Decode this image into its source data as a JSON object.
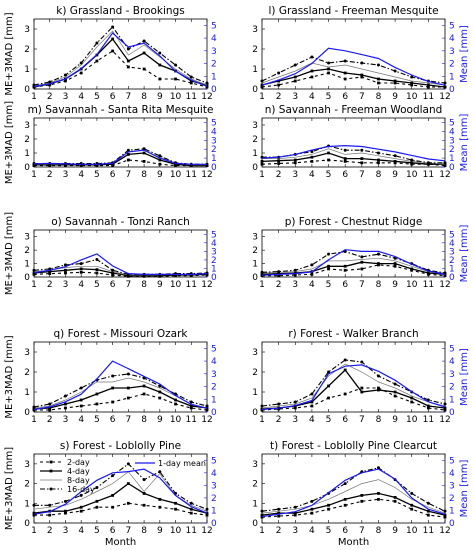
{
  "figure": {
    "xlabel": "Month",
    "ylabel_left": "ME+3MAD [mm]",
    "ylabel_right": "Mean [mm]",
    "mean_color": "#1a1aee",
    "line_color": "#000000"
  },
  "legend": {
    "entries": [
      "2-day",
      "4-day",
      "8-day",
      "16-day"
    ],
    "mean_entry": "1-day mean"
  },
  "chart_data": [
    {
      "type": "line",
      "title": "k) Grassland - Brookings",
      "x": [
        1,
        2,
        3,
        4,
        5,
        6,
        7,
        8,
        9,
        10,
        11,
        12
      ],
      "ylim": [
        0,
        3.5
      ],
      "ylim_right": [
        0,
        5.5
      ],
      "series": [
        {
          "name": "2-day",
          "values": [
            0.1,
            0.2,
            0.4,
            0.8,
            1.4,
            1.9,
            1.1,
            1.0,
            0.5,
            0.5,
            0.3,
            0.1
          ]
        },
        {
          "name": "4-day",
          "values": [
            0.1,
            0.25,
            0.5,
            1.0,
            1.7,
            2.5,
            1.4,
            1.8,
            1.2,
            0.9,
            0.4,
            0.2
          ]
        },
        {
          "name": "8-day",
          "values": [
            0.15,
            0.3,
            0.6,
            1.2,
            2.1,
            2.9,
            1.7,
            2.2,
            1.6,
            1.0,
            0.5,
            0.2
          ]
        },
        {
          "name": "16-day",
          "values": [
            0.2,
            0.35,
            0.7,
            1.3,
            2.3,
            3.1,
            2.0,
            2.4,
            1.8,
            1.2,
            0.6,
            0.3
          ]
        },
        {
          "name": "1-day mean",
          "axis": "right",
          "values": [
            0.2,
            0.4,
            0.8,
            1.6,
            2.7,
            4.4,
            3.3,
            3.6,
            2.6,
            1.4,
            0.7,
            0.2
          ]
        }
      ]
    },
    {
      "type": "line",
      "title": "l) Grassland - Freeman Mesquite",
      "x": [
        1,
        2,
        3,
        4,
        5,
        6,
        7,
        8,
        9,
        10,
        11,
        12
      ],
      "ylim": [
        0,
        3.5
      ],
      "ylim_right": [
        0,
        5.5
      ],
      "series": [
        {
          "name": "2-day",
          "values": [
            0.1,
            0.2,
            0.4,
            0.6,
            0.8,
            0.5,
            0.6,
            0.3,
            0.3,
            0.2,
            0.1,
            0.1
          ]
        },
        {
          "name": "4-day",
          "values": [
            0.2,
            0.4,
            0.6,
            0.9,
            1.0,
            0.8,
            0.7,
            0.5,
            0.4,
            0.3,
            0.2,
            0.1
          ]
        },
        {
          "name": "8-day",
          "values": [
            0.3,
            0.6,
            0.9,
            1.3,
            1.1,
            1.2,
            1.0,
            0.8,
            0.6,
            0.4,
            0.3,
            0.2
          ]
        },
        {
          "name": "16-day",
          "values": [
            0.4,
            0.8,
            1.2,
            1.6,
            1.3,
            1.4,
            1.3,
            1.2,
            0.9,
            0.6,
            0.4,
            0.3
          ]
        },
        {
          "name": "1-day mean",
          "axis": "right",
          "values": [
            0.3,
            0.7,
            1.2,
            2.0,
            3.2,
            3.0,
            2.7,
            2.4,
            1.7,
            1.1,
            0.6,
            0.3
          ]
        }
      ]
    },
    {
      "type": "line",
      "title": "m) Savannah - Santa Rita Mesquite",
      "x": [
        1,
        2,
        3,
        4,
        5,
        6,
        7,
        8,
        9,
        10,
        11,
        12
      ],
      "ylim": [
        0,
        3.5
      ],
      "ylim_right": [
        0,
        5.5
      ],
      "series": [
        {
          "name": "2-day",
          "values": [
            0.1,
            0.1,
            0.1,
            0.1,
            0.1,
            0.1,
            0.5,
            0.4,
            0.2,
            0.1,
            0.1,
            0.1
          ]
        },
        {
          "name": "4-day",
          "values": [
            0.15,
            0.15,
            0.15,
            0.15,
            0.15,
            0.2,
            0.9,
            1.0,
            0.5,
            0.2,
            0.1,
            0.1
          ]
        },
        {
          "name": "8-day",
          "values": [
            0.2,
            0.2,
            0.2,
            0.2,
            0.2,
            0.3,
            1.1,
            1.2,
            0.7,
            0.3,
            0.15,
            0.15
          ]
        },
        {
          "name": "16-day",
          "values": [
            0.25,
            0.25,
            0.25,
            0.25,
            0.25,
            0.3,
            1.2,
            1.3,
            0.8,
            0.3,
            0.2,
            0.2
          ]
        },
        {
          "name": "1-day mean",
          "axis": "right",
          "values": [
            0.35,
            0.4,
            0.35,
            0.3,
            0.3,
            0.4,
            1.7,
            1.9,
            1.0,
            0.4,
            0.3,
            0.3
          ]
        }
      ]
    },
    {
      "type": "line",
      "title": "n) Savannah - Freeman Woodland",
      "x": [
        1,
        2,
        3,
        4,
        5,
        6,
        7,
        8,
        9,
        10,
        11,
        12
      ],
      "ylim": [
        0,
        3.5
      ],
      "ylim_right": [
        0,
        5.5
      ],
      "series": [
        {
          "name": "2-day",
          "values": [
            0.2,
            0.25,
            0.3,
            0.4,
            0.5,
            0.4,
            0.3,
            0.3,
            0.3,
            0.2,
            0.2,
            0.1
          ]
        },
        {
          "name": "4-day",
          "values": [
            0.4,
            0.45,
            0.5,
            0.7,
            1.0,
            0.6,
            0.6,
            0.5,
            0.4,
            0.3,
            0.2,
            0.2
          ]
        },
        {
          "name": "8-day",
          "values": [
            0.6,
            0.6,
            0.7,
            0.9,
            1.3,
            0.9,
            1.0,
            0.8,
            0.6,
            0.4,
            0.3,
            0.2
          ]
        },
        {
          "name": "16-day",
          "values": [
            0.7,
            0.7,
            0.9,
            1.1,
            1.5,
            1.2,
            1.2,
            1.0,
            0.8,
            0.5,
            0.3,
            0.3
          ]
        },
        {
          "name": "1-day mean",
          "axis": "right",
          "values": [
            1.0,
            1.1,
            1.4,
            1.9,
            2.3,
            2.4,
            2.3,
            2.0,
            1.7,
            1.3,
            0.9,
            0.7
          ]
        }
      ]
    },
    {
      "type": "line",
      "title": "o) Savannah - Tonzi Ranch",
      "x": [
        1,
        2,
        3,
        4,
        5,
        6,
        7,
        8,
        9,
        10,
        11,
        12
      ],
      "ylim": [
        0,
        3.5
      ],
      "ylim_right": [
        0,
        5.5
      ],
      "series": [
        {
          "name": "2-day",
          "values": [
            0.2,
            0.25,
            0.3,
            0.35,
            0.3,
            0.15,
            0.05,
            0.05,
            0.05,
            0.1,
            0.1,
            0.15
          ]
        },
        {
          "name": "4-day",
          "values": [
            0.3,
            0.4,
            0.5,
            0.6,
            0.55,
            0.3,
            0.1,
            0.1,
            0.1,
            0.15,
            0.15,
            0.2
          ]
        },
        {
          "name": "8-day",
          "values": [
            0.4,
            0.5,
            0.7,
            0.8,
            0.8,
            0.4,
            0.15,
            0.15,
            0.15,
            0.2,
            0.2,
            0.25
          ]
        },
        {
          "name": "16-day",
          "values": [
            0.5,
            0.6,
            0.9,
            1.0,
            1.3,
            0.5,
            0.2,
            0.2,
            0.2,
            0.25,
            0.25,
            0.3
          ]
        },
        {
          "name": "1-day mean",
          "axis": "right",
          "values": [
            0.5,
            0.8,
            1.2,
            2.0,
            2.7,
            1.3,
            0.4,
            0.3,
            0.3,
            0.3,
            0.3,
            0.4
          ]
        }
      ]
    },
    {
      "type": "line",
      "title": "p) Forest - Chestnut Ridge",
      "x": [
        1,
        2,
        3,
        4,
        5,
        6,
        7,
        8,
        9,
        10,
        11,
        12
      ],
      "ylim": [
        0,
        3.5
      ],
      "ylim_right": [
        0,
        5.5
      ],
      "series": [
        {
          "name": "2-day",
          "values": [
            0.1,
            0.1,
            0.15,
            0.2,
            0.6,
            0.5,
            0.6,
            0.9,
            0.8,
            0.5,
            0.2,
            0.1
          ]
        },
        {
          "name": "4-day",
          "values": [
            0.2,
            0.25,
            0.3,
            0.4,
            0.8,
            0.8,
            1.1,
            1.0,
            1.0,
            0.6,
            0.3,
            0.2
          ]
        },
        {
          "name": "8-day",
          "values": [
            0.3,
            0.35,
            0.4,
            0.6,
            1.2,
            1.2,
            1.3,
            1.4,
            1.2,
            0.8,
            0.4,
            0.3
          ]
        },
        {
          "name": "16-day",
          "values": [
            0.35,
            0.4,
            0.5,
            0.9,
            1.7,
            1.9,
            1.5,
            1.7,
            1.4,
            1.0,
            0.5,
            0.3
          ]
        },
        {
          "name": "1-day mean",
          "axis": "right",
          "values": [
            0.2,
            0.3,
            0.4,
            0.6,
            2.0,
            3.2,
            3.0,
            3.0,
            2.4,
            1.5,
            0.7,
            0.3
          ]
        }
      ]
    },
    {
      "type": "line",
      "title": "q) Forest - Missouri Ozark",
      "x": [
        1,
        2,
        3,
        4,
        5,
        6,
        7,
        8,
        9,
        10,
        11,
        12
      ],
      "ylim": [
        0,
        3.5
      ],
      "ylim_right": [
        0,
        5.5
      ],
      "series": [
        {
          "name": "2-day",
          "values": [
            0.1,
            0.1,
            0.2,
            0.3,
            0.4,
            0.5,
            0.7,
            0.9,
            0.7,
            0.4,
            0.2,
            0.1
          ]
        },
        {
          "name": "4-day",
          "values": [
            0.15,
            0.2,
            0.4,
            0.6,
            0.9,
            1.2,
            1.2,
            1.3,
            1.0,
            0.6,
            0.3,
            0.2
          ]
        },
        {
          "name": "8-day",
          "values": [
            0.2,
            0.3,
            0.6,
            1.0,
            1.5,
            1.5,
            1.7,
            1.5,
            1.2,
            0.8,
            0.4,
            0.2
          ]
        },
        {
          "name": "16-day",
          "values": [
            0.25,
            0.4,
            0.8,
            1.2,
            1.6,
            1.8,
            1.9,
            1.7,
            1.3,
            0.9,
            0.5,
            0.3
          ]
        },
        {
          "name": "1-day mean",
          "axis": "right",
          "values": [
            0.2,
            0.4,
            0.8,
            1.4,
            2.6,
            4.0,
            3.4,
            2.8,
            2.2,
            1.3,
            0.6,
            0.3
          ]
        }
      ]
    },
    {
      "type": "line",
      "title": "r) Forest - Walker Branch",
      "x": [
        1,
        2,
        3,
        4,
        5,
        6,
        7,
        8,
        9,
        10,
        11,
        12
      ],
      "ylim": [
        0,
        3.5
      ],
      "ylim_right": [
        0,
        5.5
      ],
      "series": [
        {
          "name": "2-day",
          "values": [
            0.1,
            0.15,
            0.2,
            0.3,
            0.7,
            0.9,
            1.2,
            1.2,
            0.8,
            0.5,
            0.2,
            0.1
          ]
        },
        {
          "name": "4-day",
          "values": [
            0.15,
            0.2,
            0.3,
            0.5,
            1.3,
            2.1,
            1.0,
            1.1,
            1.0,
            0.7,
            0.3,
            0.2
          ]
        },
        {
          "name": "8-day",
          "values": [
            0.2,
            0.3,
            0.4,
            0.7,
            1.8,
            2.4,
            2.0,
            1.5,
            1.2,
            0.8,
            0.5,
            0.3
          ]
        },
        {
          "name": "16-day",
          "values": [
            0.3,
            0.4,
            0.5,
            0.9,
            2.0,
            2.6,
            2.5,
            1.8,
            1.4,
            1.0,
            0.6,
            0.4
          ]
        },
        {
          "name": "1-day mean",
          "axis": "right",
          "values": [
            0.2,
            0.3,
            0.5,
            0.9,
            3.0,
            3.6,
            3.7,
            3.2,
            2.5,
            1.6,
            0.8,
            0.4
          ]
        }
      ]
    },
    {
      "type": "line",
      "title": "s) Forest - Loblolly Pine",
      "x": [
        1,
        2,
        3,
        4,
        5,
        6,
        7,
        8,
        9,
        10,
        11,
        12
      ],
      "ylim": [
        0,
        3.5
      ],
      "ylim_right": [
        0,
        5.5
      ],
      "series": [
        {
          "name": "2-day",
          "values": [
            0.4,
            0.4,
            0.5,
            0.6,
            0.8,
            0.8,
            1.0,
            0.9,
            0.8,
            0.7,
            0.5,
            0.4
          ]
        },
        {
          "name": "4-day",
          "values": [
            0.5,
            0.6,
            0.6,
            0.8,
            1.1,
            1.4,
            2.0,
            1.5,
            1.2,
            1.0,
            0.7,
            0.5
          ]
        },
        {
          "name": "8-day",
          "values": [
            0.7,
            0.8,
            0.9,
            1.2,
            1.6,
            2.0,
            2.6,
            1.6,
            2.5,
            1.4,
            0.9,
            0.6
          ]
        },
        {
          "name": "16-day",
          "values": [
            0.9,
            0.9,
            1.1,
            1.4,
            1.8,
            2.4,
            3.0,
            2.2,
            2.6,
            1.5,
            1.0,
            0.7
          ]
        },
        {
          "name": "1-day mean",
          "axis": "right",
          "values": [
            0.7,
            0.9,
            1.5,
            2.5,
            3.4,
            4.0,
            4.1,
            4.3,
            3.6,
            2.2,
            1.3,
            0.8
          ]
        }
      ]
    },
    {
      "type": "line",
      "title": "t) Forest - Loblolly Pine Clearcut",
      "x": [
        1,
        2,
        3,
        4,
        5,
        6,
        7,
        8,
        9,
        10,
        11,
        12
      ],
      "ylim": [
        0,
        3.5
      ],
      "ylim_right": [
        0,
        5.5
      ],
      "series": [
        {
          "name": "2-day",
          "values": [
            0.3,
            0.35,
            0.4,
            0.5,
            0.7,
            0.9,
            1.1,
            1.2,
            1.1,
            0.7,
            0.4,
            0.3
          ]
        },
        {
          "name": "4-day",
          "values": [
            0.4,
            0.5,
            0.5,
            0.7,
            0.9,
            1.2,
            1.4,
            1.5,
            1.3,
            0.9,
            0.6,
            0.4
          ]
        },
        {
          "name": "8-day",
          "values": [
            0.5,
            0.6,
            0.7,
            0.9,
            1.2,
            1.6,
            2.0,
            2.2,
            1.8,
            1.2,
            0.8,
            0.5
          ]
        },
        {
          "name": "16-day",
          "values": [
            0.6,
            0.7,
            0.8,
            1.1,
            1.5,
            2.0,
            2.6,
            2.8,
            2.2,
            1.5,
            1.0,
            0.6
          ]
        },
        {
          "name": "1-day mean",
          "axis": "right",
          "values": [
            0.5,
            0.7,
            0.9,
            1.4,
            2.4,
            3.4,
            4.0,
            4.3,
            3.5,
            2.0,
            1.1,
            0.7
          ]
        }
      ]
    }
  ]
}
